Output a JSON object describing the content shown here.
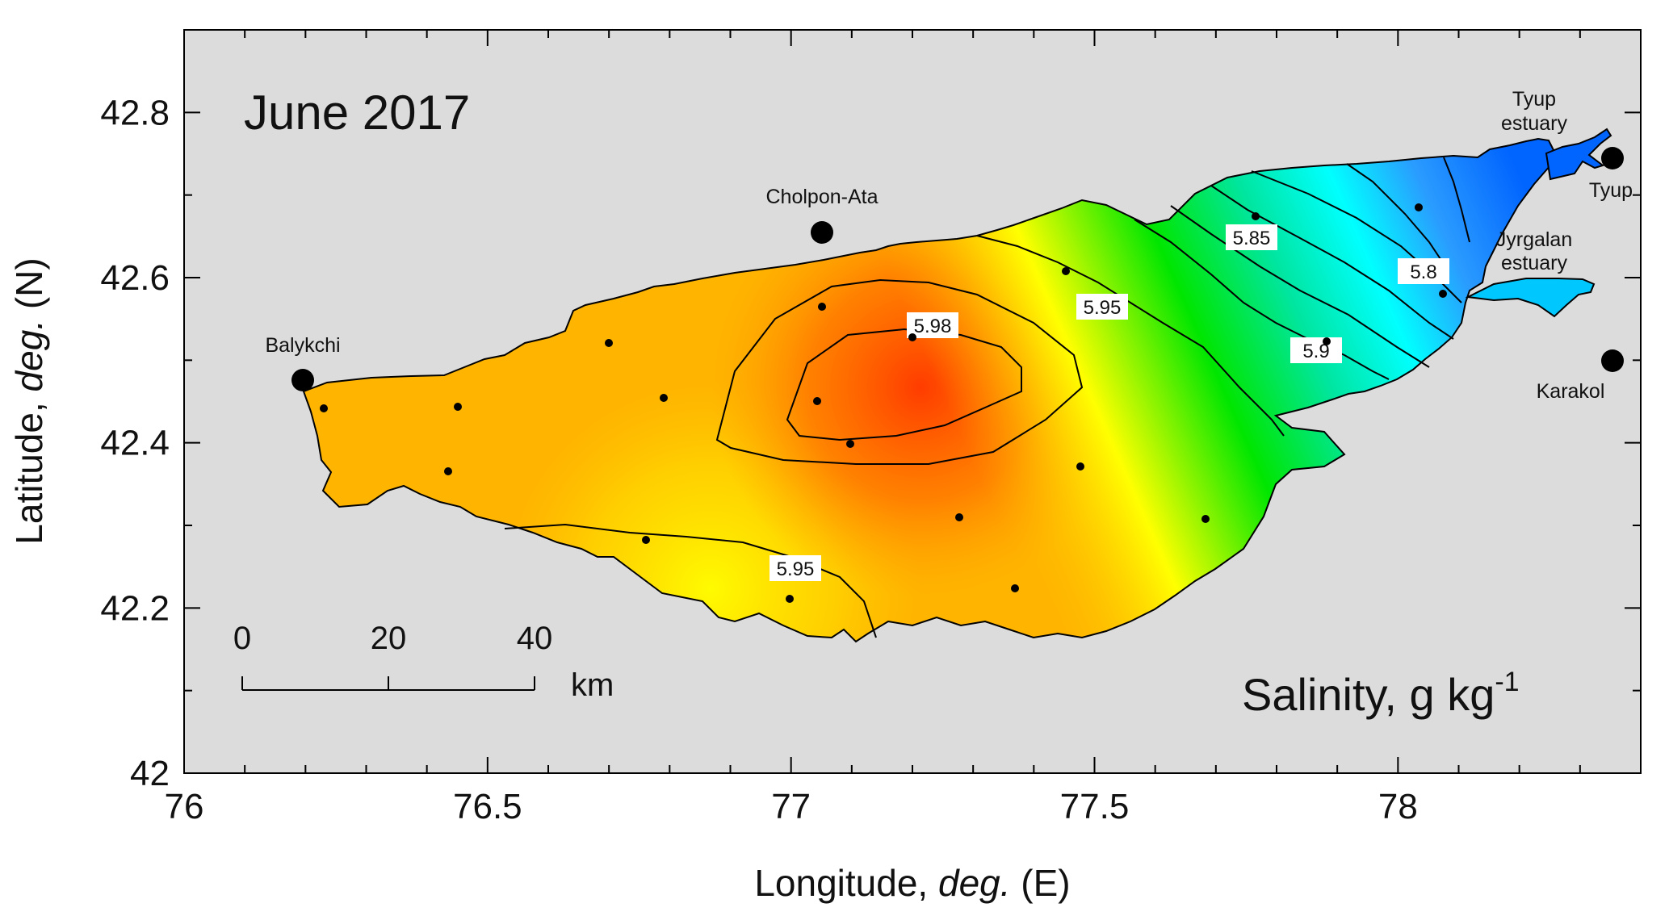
{
  "title": "June 2017",
  "parameter": {
    "text": "Salinity, g kg",
    "exponent": "-1"
  },
  "axes": {
    "x": {
      "label_prefix": "Longitude, ",
      "label_italic": "deg.",
      "label_suffix": " (E)",
      "range": [
        76,
        78.4
      ],
      "ticks": [
        "76",
        "76.5",
        "77",
        "77.5",
        "78"
      ]
    },
    "y": {
      "label_prefix": "Latitude, ",
      "label_italic": "deg.",
      "label_suffix": " (N)",
      "range": [
        42,
        42.9
      ],
      "ticks": [
        "42",
        "42.2",
        "42.4",
        "42.6",
        "42.8"
      ]
    }
  },
  "scale_bar": {
    "ticks": [
      "0",
      "20",
      "40"
    ],
    "unit": "km"
  },
  "places": [
    {
      "name": "Balykchi"
    },
    {
      "name": "Cholpon-Ata"
    },
    {
      "name": "Tyup"
    },
    {
      "name": "Karakol"
    }
  ],
  "estuaries": [
    {
      "line1": "Tyup",
      "line2": "estuary"
    },
    {
      "line1": "Jyrgalan",
      "line2": "estuary"
    }
  ],
  "contour_labels": [
    "5.98",
    "5.95",
    "5.95",
    "5.9",
    "5.85",
    "5.8"
  ],
  "colors": {
    "background": "#dcdcdc",
    "salinity_high": "#ff3c00",
    "salinity_mid": "#ffb400",
    "salinity_low_yellow": "#ffff00",
    "salinity_green": "#00e600",
    "salinity_cyan": "#00ffff",
    "salinity_lowest": "#0064ff"
  }
}
